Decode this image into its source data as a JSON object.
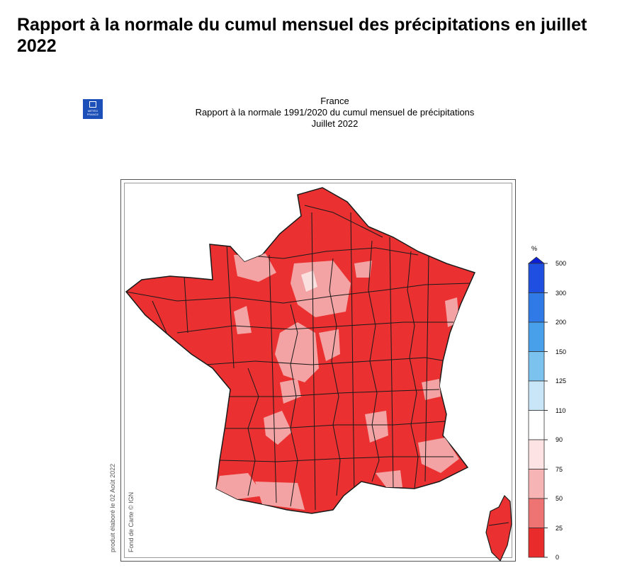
{
  "page": {
    "title": "Rapport à la normale du cumul mensuel des précipitations en juillet 2022"
  },
  "figure": {
    "logo": {
      "line1": "MÉTÉO",
      "line2": "FRANCE"
    },
    "header": {
      "line1": "France",
      "line2": "Rapport à la normale 1991/2020 du cumul mensuel de précipitations",
      "line3": "Juillet 2022"
    },
    "credits": {
      "produced": "produit élaboré le 02 Août 2022",
      "basemap": "Fond de Carte © IGN"
    },
    "scale": {
      "unit": "%",
      "classes": [
        {
          "label": "500",
          "color": "#0a1fd6"
        },
        {
          "label": "300",
          "color": "#1f4fe0"
        },
        {
          "label": "200",
          "color": "#2f7ae6"
        },
        {
          "label": "150",
          "color": "#48a0ea"
        },
        {
          "label": "125",
          "color": "#7cc2ef"
        },
        {
          "label": "110",
          "color": "#c9e6f8"
        },
        {
          "label": "90",
          "color": "#ffffff"
        },
        {
          "label": "75",
          "color": "#fde3e3"
        },
        {
          "label": "50",
          "color": "#f6b4b4"
        },
        {
          "label": "25",
          "color": "#ee7373"
        },
        {
          "label": "0",
          "color": "#e92b2b"
        }
      ]
    },
    "map": {
      "main_fill": "#ea3030",
      "light_fill": "#f3a3a3",
      "pale_fill": "#fbe0e0",
      "border_color": "#1a1a1a"
    }
  }
}
